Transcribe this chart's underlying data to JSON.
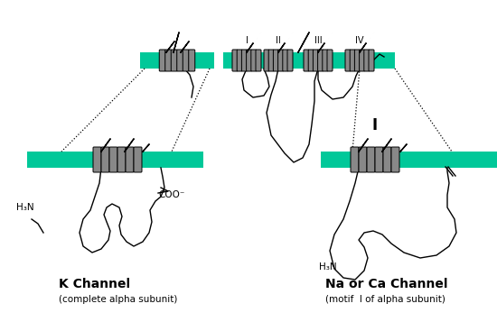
{
  "bg_color": "#ffffff",
  "teal_color": "#00c899",
  "helix_color": "#888888",
  "line_color": "#000000",
  "line_width": 1.0,
  "k_channel_label": "K Channel",
  "k_channel_sub": "(complete alpha subunit)",
  "na_ca_label": "Na or Ca Channel",
  "na_ca_sub": "(motif  I of alpha subunit)",
  "motif_I_label": "I",
  "roman_labels": [
    "I",
    "II",
    "III",
    "IV"
  ],
  "h3n_label": "H₃N",
  "coo_label": "COO⁻"
}
